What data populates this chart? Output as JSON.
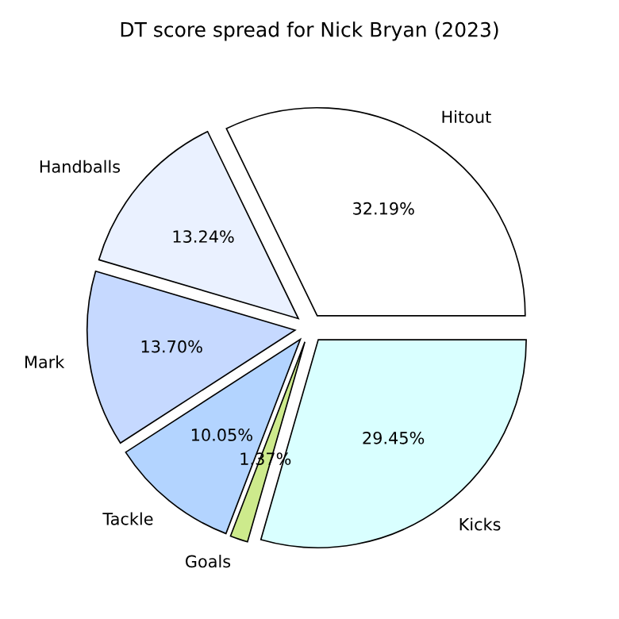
{
  "chart_data": {
    "type": "pie",
    "title": "DT score spread for Nick Bryan (2023)",
    "categories": [
      "Hitout",
      "Handballs",
      "Mark",
      "Tackle",
      "Goals",
      "Kicks"
    ],
    "values": [
      32.19,
      13.24,
      13.7,
      10.05,
      1.37,
      29.45
    ],
    "value_labels": [
      "32.19%",
      "13.24%",
      "13.70%",
      "10.05%",
      "1.37%",
      "29.45%"
    ],
    "colors": [
      "#ffffff",
      "#eaf1ff",
      "#c6d9ff",
      "#b3d4ff",
      "#cdea8c",
      "#d9ffff"
    ]
  }
}
